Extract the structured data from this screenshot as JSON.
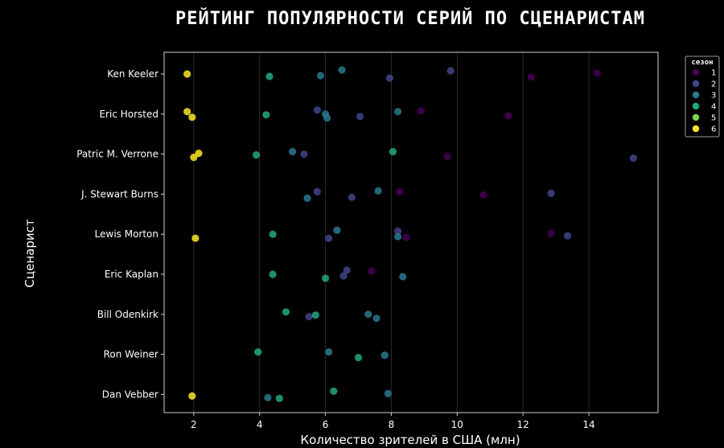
{
  "chart_data": {
    "type": "scatter",
    "title": "РЕЙТИНГ ПОПУЛЯРНОСТИ СЕРИЙ ПО СЦЕНАРИСТАМ",
    "xlabel": "Количество зрителей в США (млн)",
    "ylabel": "Сценарист",
    "xlim": [
      1.1,
      16.1
    ],
    "xticks": [
      2,
      4,
      6,
      8,
      10,
      12,
      14
    ],
    "grid": "vertical",
    "legend": {
      "title": "сезон",
      "position": "top-right outside"
    },
    "categories": [
      "Ken Keeler",
      "Eric Horsted",
      "Patric M. Verrone",
      "J. Stewart Burns",
      "Lewis Morton",
      "Eric Kaplan",
      "Bill Odenkirk",
      "Ron Weiner",
      "Dan Vebber"
    ],
    "series": [
      {
        "name": "1",
        "color": "#440154",
        "points": [
          {
            "writer": "Ken Keeler",
            "x": 12.25
          },
          {
            "writer": "Ken Keeler",
            "x": 14.25
          },
          {
            "writer": "Eric Horsted",
            "x": 8.9
          },
          {
            "writer": "Eric Horsted",
            "x": 11.55
          },
          {
            "writer": "Patric M. Verrone",
            "x": 9.7
          },
          {
            "writer": "J. Stewart Burns",
            "x": 8.25
          },
          {
            "writer": "J. Stewart Burns",
            "x": 10.8
          },
          {
            "writer": "Lewis Morton",
            "x": 8.45
          },
          {
            "writer": "Lewis Morton",
            "x": 12.85
          },
          {
            "writer": "Eric Kaplan",
            "x": 7.4
          }
        ]
      },
      {
        "name": "2",
        "color": "#414487",
        "points": [
          {
            "writer": "Ken Keeler",
            "x": 7.95
          },
          {
            "writer": "Ken Keeler",
            "x": 9.8
          },
          {
            "writer": "Eric Horsted",
            "x": 5.75
          },
          {
            "writer": "Eric Horsted",
            "x": 7.05
          },
          {
            "writer": "Patric M. Verrone",
            "x": 5.35
          },
          {
            "writer": "Patric M. Verrone",
            "x": 15.35
          },
          {
            "writer": "J. Stewart Burns",
            "x": 5.75
          },
          {
            "writer": "J. Stewart Burns",
            "x": 6.8
          },
          {
            "writer": "J. Stewart Burns",
            "x": 12.85
          },
          {
            "writer": "Lewis Morton",
            "x": 6.1
          },
          {
            "writer": "Lewis Morton",
            "x": 8.2
          },
          {
            "writer": "Lewis Morton",
            "x": 13.35
          },
          {
            "writer": "Eric Kaplan",
            "x": 6.55
          },
          {
            "writer": "Eric Kaplan",
            "x": 6.65
          },
          {
            "writer": "Bill Odenkirk",
            "x": 5.5
          }
        ]
      },
      {
        "name": "3",
        "color": "#2a788e",
        "points": [
          {
            "writer": "Ken Keeler",
            "x": 5.85
          },
          {
            "writer": "Ken Keeler",
            "x": 6.5
          },
          {
            "writer": "Eric Horsted",
            "x": 6.0
          },
          {
            "writer": "Eric Horsted",
            "x": 6.05
          },
          {
            "writer": "Eric Horsted",
            "x": 8.2
          },
          {
            "writer": "Patric M. Verrone",
            "x": 5.0
          },
          {
            "writer": "J. Stewart Burns",
            "x": 5.45
          },
          {
            "writer": "J. Stewart Burns",
            "x": 7.6
          },
          {
            "writer": "Lewis Morton",
            "x": 6.35
          },
          {
            "writer": "Lewis Morton",
            "x": 8.2
          },
          {
            "writer": "Eric Kaplan",
            "x": 8.35
          },
          {
            "writer": "Bill Odenkirk",
            "x": 7.3
          },
          {
            "writer": "Bill Odenkirk",
            "x": 7.55
          },
          {
            "writer": "Ron Weiner",
            "x": 6.1
          },
          {
            "writer": "Ron Weiner",
            "x": 7.8
          },
          {
            "writer": "Dan Vebber",
            "x": 4.25
          },
          {
            "writer": "Dan Vebber",
            "x": 7.9
          }
        ]
      },
      {
        "name": "4",
        "color": "#22a884",
        "points": [
          {
            "writer": "Ken Keeler",
            "x": 4.3
          },
          {
            "writer": "Eric Horsted",
            "x": 4.2
          },
          {
            "writer": "Patric M. Verrone",
            "x": 3.9
          },
          {
            "writer": "Patric M. Verrone",
            "x": 8.05
          },
          {
            "writer": "Lewis Morton",
            "x": 4.4
          },
          {
            "writer": "Eric Kaplan",
            "x": 4.4
          },
          {
            "writer": "Eric Kaplan",
            "x": 6.0
          },
          {
            "writer": "Bill Odenkirk",
            "x": 4.8
          },
          {
            "writer": "Bill Odenkirk",
            "x": 5.7
          },
          {
            "writer": "Ron Weiner",
            "x": 3.95
          },
          {
            "writer": "Ron Weiner",
            "x": 7.0
          },
          {
            "writer": "Dan Vebber",
            "x": 4.6
          },
          {
            "writer": "Dan Vebber",
            "x": 6.25
          }
        ]
      },
      {
        "name": "5",
        "color": "#7ad151",
        "points": []
      },
      {
        "name": "6",
        "color": "#fde725",
        "points": [
          {
            "writer": "Ken Keeler",
            "x": 1.8
          },
          {
            "writer": "Eric Horsted",
            "x": 1.8
          },
          {
            "writer": "Eric Horsted",
            "x": 1.95
          },
          {
            "writer": "Patric M. Verrone",
            "x": 2.0
          },
          {
            "writer": "Patric M. Verrone",
            "x": 2.15
          },
          {
            "writer": "Lewis Morton",
            "x": 2.05
          },
          {
            "writer": "Dan Vebber",
            "x": 1.95
          }
        ]
      }
    ]
  }
}
